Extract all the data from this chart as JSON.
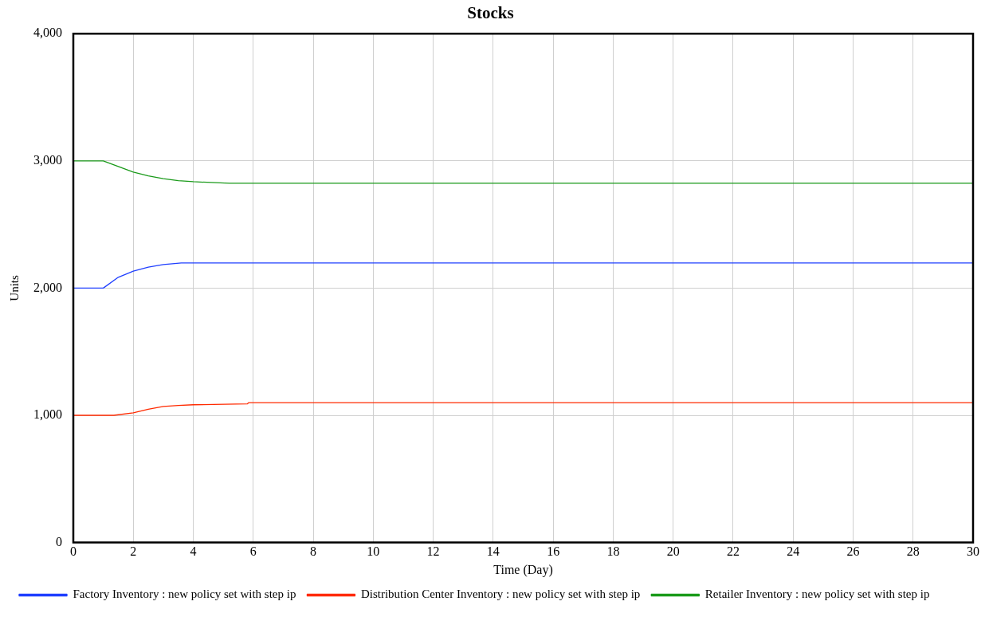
{
  "chart_data": {
    "type": "line",
    "title": "Stocks",
    "xlabel": "Time (Day)",
    "ylabel": "Units",
    "xlim": [
      0,
      30
    ],
    "xticks": [
      0,
      2,
      4,
      6,
      8,
      10,
      12,
      14,
      16,
      18,
      20,
      22,
      24,
      26,
      28,
      30
    ],
    "ylim": [
      0,
      4000
    ],
    "yticks": [
      0,
      {
        "value": 1000,
        "label": "1,000"
      },
      {
        "value": 2000,
        "label": "2,000"
      },
      {
        "value": 3000,
        "label": "3,000"
      },
      {
        "value": 4000,
        "label": "4,000"
      }
    ],
    "grid": true,
    "legend": "bottom",
    "marker": "none",
    "line_style": "solid",
    "series": [
      {
        "name": "Factory Inventory : new policy set with step ip",
        "color": "#1f3fff",
        "x": [
          0,
          1,
          1.5,
          2,
          2.5,
          3,
          3.6,
          30
        ],
        "values": [
          2000,
          2000,
          2085,
          2133,
          2165,
          2185,
          2198,
          2198
        ]
      },
      {
        "name": "Distribution Center Inventory : new policy set with step ip",
        "color": "#ff2a00",
        "x": [
          0,
          1.35,
          2,
          2.5,
          3,
          3.5,
          4,
          5.8,
          5.85,
          30
        ],
        "values": [
          1000,
          1000,
          1020,
          1048,
          1070,
          1078,
          1083,
          1090,
          1100,
          1100
        ]
      },
      {
        "name": "Retailer Inventory : new policy set with step ip",
        "color": "#1a9a1a",
        "x": [
          0,
          1,
          1.5,
          2,
          2.5,
          3,
          3.5,
          4,
          5.2,
          30
        ],
        "values": [
          3000,
          3000,
          2955,
          2912,
          2882,
          2860,
          2845,
          2836,
          2824,
          2824
        ]
      }
    ]
  }
}
